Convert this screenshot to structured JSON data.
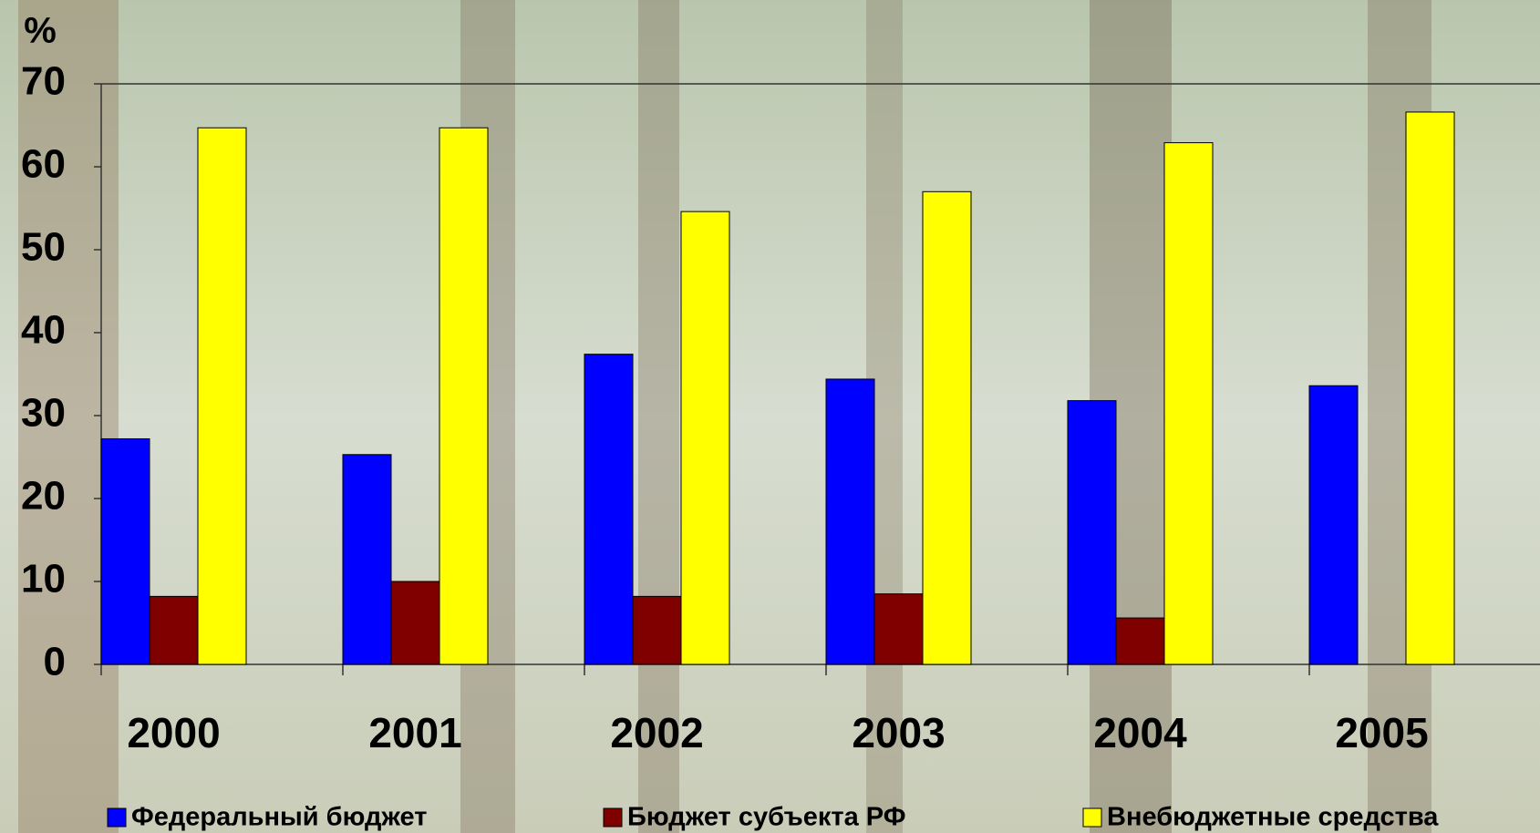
{
  "chart_data": {
    "type": "bar",
    "y_label": "%",
    "categories": [
      "2000",
      "2001",
      "2002",
      "2003",
      "2004",
      "2005"
    ],
    "series": [
      {
        "name": "Федеральный бюджет",
        "color": "#0000ff",
        "values": [
          27.2,
          25.3,
          37.4,
          34.4,
          31.8,
          33.6
        ]
      },
      {
        "name": "Бюджет субъекта РФ",
        "color": "#800000",
        "values": [
          8.2,
          10.0,
          8.2,
          8.5,
          5.6,
          null
        ]
      },
      {
        "name": "Внебюджетные средства",
        "color": "#ffff00",
        "values": [
          64.7,
          64.7,
          54.6,
          57.0,
          62.9,
          66.6
        ]
      }
    ],
    "ylim": [
      0,
      70
    ],
    "yticks": [
      0,
      10,
      20,
      30,
      40,
      50,
      60,
      70
    ],
    "grid": false
  }
}
